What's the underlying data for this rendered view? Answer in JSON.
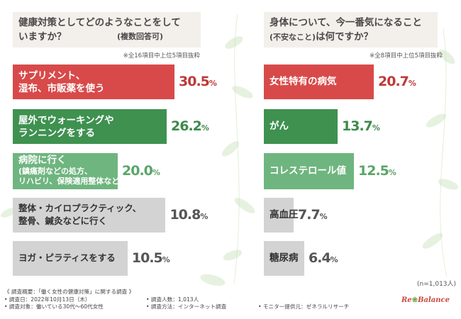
{
  "colors": {
    "red": "#d84a4a",
    "green": "#3f9150",
    "lightgreen": "#6fb57f",
    "gray": "#d3d3d3",
    "pct_red": "#c03838",
    "pct_green": "#3d8a4c",
    "pct_lightgreen": "#5aa568",
    "pct_gray": "#555555"
  },
  "chart_data": [
    {
      "type": "bar",
      "orientation": "horizontal",
      "title": "健康対策としてどのようなことをしていますか？",
      "subtitle": "(複数回答可)",
      "note": "※全16項目中上位5項目抜粋",
      "unit": "%",
      "xlim": [
        0,
        30.5
      ],
      "categories": [
        "サプリメント、\n湿布、市販薬を使う",
        "屋外でウォーキングや\nランニングをする",
        "病院に行く\n(鎮痛剤などの処方、\nリハビリ、保険適用整体など)",
        "整体・カイロプラクティック、\n整骨、鍼灸などに行く",
        "ヨガ・ピラティスをする"
      ],
      "values": [
        30.5,
        26.2,
        20.0,
        10.8,
        10.5
      ],
      "labels": [
        "30.5",
        "26.2",
        "20.0",
        "10.8",
        "10.5"
      ],
      "colors": [
        "red",
        "green",
        "lightgreen",
        "gray",
        "gray"
      ]
    },
    {
      "type": "bar",
      "orientation": "horizontal",
      "title": "身体について、今一番気になること",
      "subtitle": "(不安なこと)",
      "title_suffix": "は何ですか？",
      "note": "※全8項目中上位5項目抜粋",
      "unit": "%",
      "xlim": [
        0,
        20.7
      ],
      "categories": [
        "女性特有の病気",
        "がん",
        "コレステロール値",
        "高血圧",
        "糖尿病"
      ],
      "values": [
        20.7,
        13.7,
        12.5,
        7.7,
        6.4
      ],
      "labels": [
        "20.7",
        "13.7",
        "12.5",
        "7.7",
        "6.4"
      ],
      "colors": [
        "red",
        "green",
        "lightgreen",
        "gray",
        "gray"
      ]
    }
  ],
  "sample_note": "(n=1,013人)",
  "footer": {
    "line1": "《 調査概要：「働く女性の健康対策」に関する調査 》",
    "date": "• 調査日：2022年10月13日（木）",
    "count": "• 調査人数：1,013人",
    "target": "• 調査対象：働いている30代～60代女性",
    "method": "• 調査方法：インターネット調査",
    "provider": "• モニター提供元：ゼネラルリサーチ"
  },
  "logo": {
    "part1": "Re",
    "part2": "Balance"
  }
}
